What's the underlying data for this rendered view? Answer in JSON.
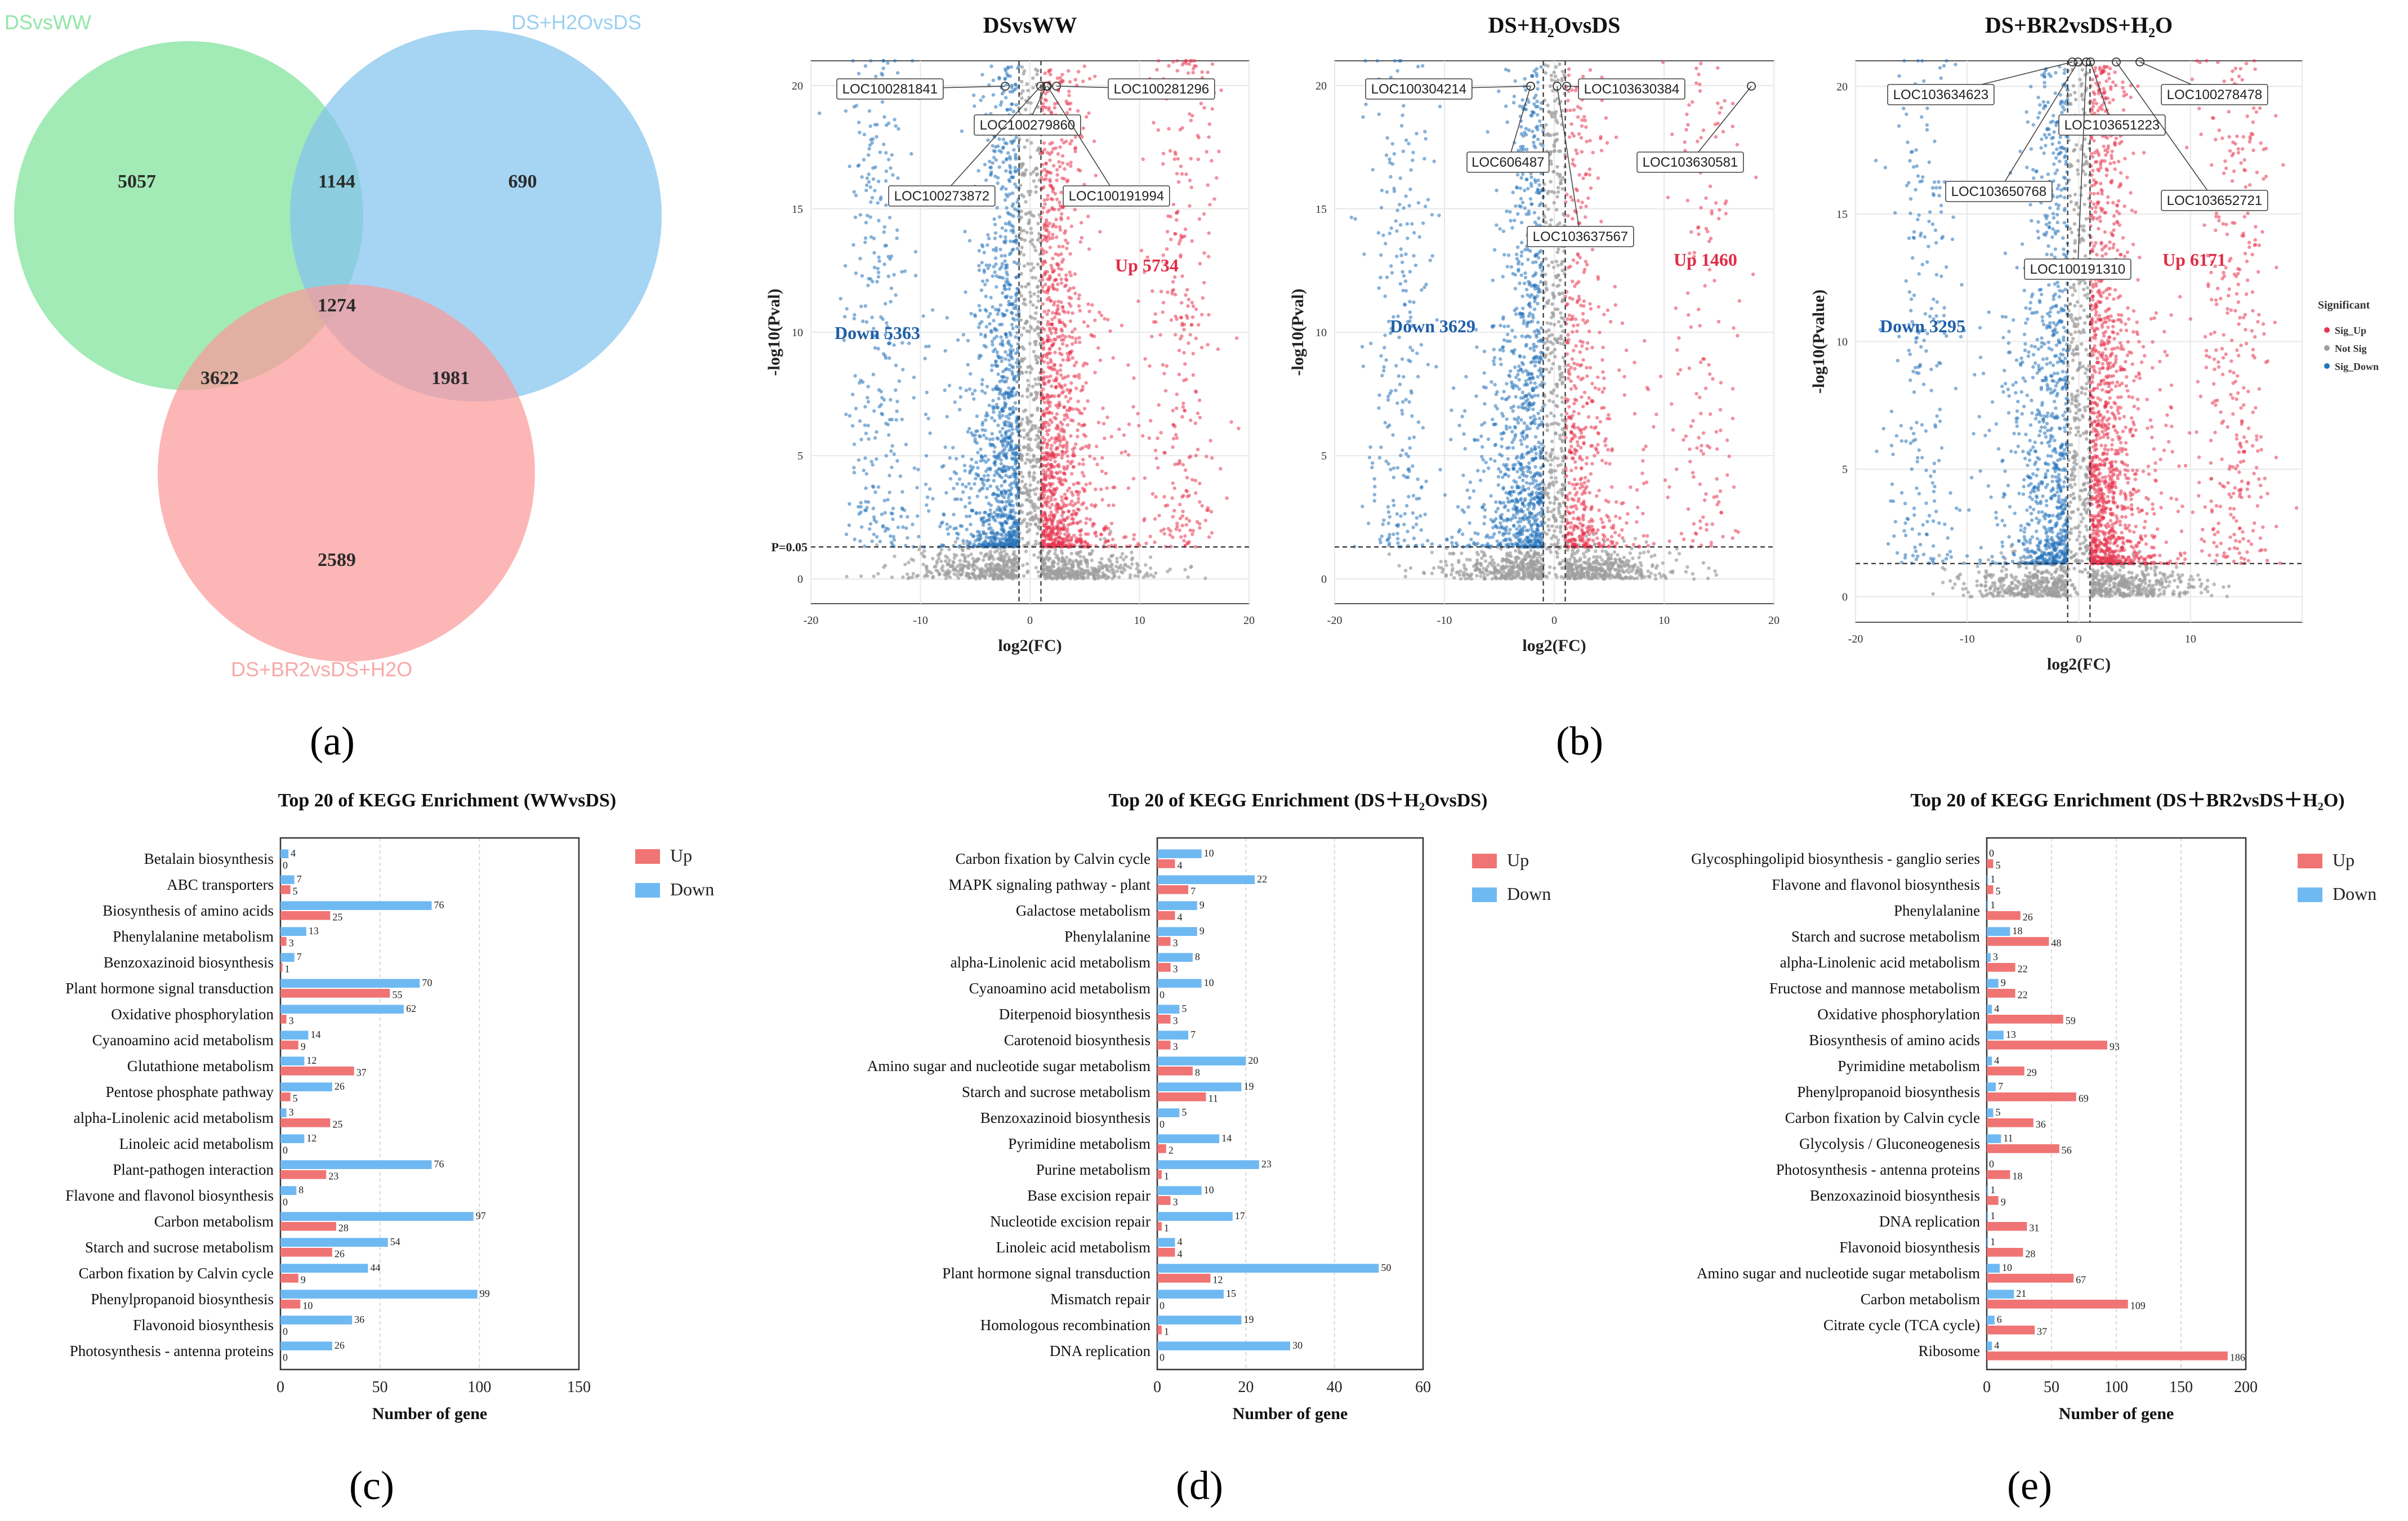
{
  "colors": {
    "venn_green": "#7ee29a",
    "venn_blue": "#84c4ef",
    "venn_red": "#fb9a9a",
    "venn_label_green": "#92e6a8",
    "venn_label_blue": "#9cd0f2",
    "venn_label_red": "#f8a9a9",
    "volcano_up": "#e8344e",
    "volcano_down": "#2573b9",
    "volcano_ns": "#9e9e9e",
    "volcano_up_text": "#e02d48",
    "volcano_down_text": "#1f5fa8",
    "bar_up": "#f07474",
    "bar_down": "#6fb9f3"
  },
  "panel_labels": {
    "a": "(a)",
    "b": "(b)",
    "c": "(c)",
    "d": "(d)",
    "e": "(e)"
  },
  "chart_data": [
    {
      "id": "venn",
      "type": "venn",
      "sets": [
        "DSvsWW",
        "DS+H2OvsDS",
        "DS+BR2vsDS+H2O"
      ],
      "regions": {
        "only_DSvsWW": 5057,
        "only_DS+H2OvsDS": 690,
        "only_DS+BR2vsDS+H2O": 2589,
        "DSvsWW_and_DS+H2OvsDS": 1144,
        "DSvsWW_and_DS+BR2vsDS+H2O": 3622,
        "DS+H2OvsDS_and_DS+BR2vsDS+H2O": 1981,
        "all_three": 1274
      },
      "region_labels": {
        "g": "5057",
        "b": "690",
        "r": "2589",
        "gb": "1144",
        "gr": "3622",
        "br": "1981",
        "gbr": "1274"
      }
    },
    {
      "id": "volcano1",
      "type": "scatter",
      "title": "DSvsWW",
      "xlabel": "log2(FC)",
      "ylabel": "-log10(Pval)",
      "xlim": [
        -20,
        20
      ],
      "ylim": [
        -1,
        21
      ],
      "xticks": [
        "-20",
        "-10",
        "0",
        "10",
        "20"
      ],
      "yticks": [
        "0",
        "5",
        "10",
        "15",
        "20"
      ],
      "threshold_label": "P=0.05",
      "counts": {
        "down": "Down 5363",
        "up": "Up 5734"
      },
      "annotated_genes": [
        "LOC100281841",
        "LOC100281296",
        "LOC100279860",
        "LOC100273872",
        "LOC100191994"
      ]
    },
    {
      "id": "volcano2",
      "type": "scatter",
      "title": "DS+H₂OvsDS",
      "xlabel": "log2(FC)",
      "ylabel": "-log10(Pval)",
      "xlim": [
        -20,
        20
      ],
      "ylim": [
        -1,
        21
      ],
      "xticks": [
        "-20",
        "-10",
        "0",
        "10",
        "20"
      ],
      "yticks": [
        "0",
        "5",
        "10",
        "15",
        "20"
      ],
      "counts": {
        "down": "Down 3629",
        "up": "Up 1460"
      },
      "annotated_genes": [
        "LOC100304214",
        "LOC103630384",
        "LOC606487",
        "LOC103630581",
        "LOC103637567"
      ]
    },
    {
      "id": "volcano3",
      "type": "scatter",
      "title": "DS+BR2vsDS+H₂O",
      "xlabel": "log2(FC)",
      "ylabel": "-log10(Pvalue)",
      "xlim": [
        -20,
        20
      ],
      "ylim": [
        -1,
        21
      ],
      "xticks": [
        "-20",
        "-10",
        "0",
        "10"
      ],
      "yticks": [
        "0",
        "5",
        "10",
        "15",
        "20"
      ],
      "counts": {
        "down": "Down 3295",
        "up": "Up 6171"
      },
      "annotated_genes": [
        "LOC103634623",
        "LOC100278478",
        "LOC103651223",
        "LOC103650768",
        "LOC103652721",
        "LOC100191310"
      ],
      "legend": {
        "title": "Significant",
        "items": [
          "Sig_Up",
          "Not Sig",
          "Sig_Down"
        ]
      }
    },
    {
      "id": "kegg1",
      "type": "bar",
      "orientation": "horizontal",
      "title": "Top 20 of KEGG Enrichment (WWvsDS)",
      "xlabel": "Number of gene",
      "xlim": [
        0,
        150
      ],
      "xticks": [
        "0",
        "50",
        "100",
        "150"
      ],
      "legend": [
        "Up",
        "Down"
      ],
      "categories": [
        "Betalain biosynthesis",
        "ABC transporters",
        "Biosynthesis of amino acids",
        "Phenylalanine metabolism",
        "Benzoxazinoid biosynthesis",
        "Plant hormone signal transduction",
        "Oxidative phosphorylation",
        "Cyanoamino acid metabolism",
        "Glutathione metabolism",
        "Pentose phosphate pathway",
        "alpha-Linolenic acid metabolism",
        "Linoleic acid metabolism",
        "Plant-pathogen interaction",
        "Flavone and flavonol biosynthesis",
        "Carbon metabolism",
        "Starch and sucrose metabolism",
        "Carbon fixation by Calvin cycle",
        "Phenylpropanoid biosynthesis",
        "Flavonoid biosynthesis",
        "Photosynthesis - antenna proteins"
      ],
      "series": [
        {
          "name": "Down",
          "values": [
            4,
            7,
            76,
            13,
            7,
            70,
            62,
            14,
            12,
            26,
            3,
            12,
            76,
            8,
            97,
            54,
            44,
            99,
            36,
            26
          ]
        },
        {
          "name": "Up",
          "values": [
            0,
            5,
            25,
            3,
            1,
            55,
            3,
            9,
            37,
            5,
            25,
            0,
            23,
            0,
            28,
            26,
            9,
            10,
            0,
            0
          ]
        }
      ]
    },
    {
      "id": "kegg2",
      "type": "bar",
      "orientation": "horizontal",
      "title": "Top 20 of KEGG Enrichment (DS＋H₂OvsDS)",
      "xlabel": "Number of gene",
      "xlim": [
        0,
        60
      ],
      "xticks": [
        "0",
        "20",
        "40",
        "60"
      ],
      "legend": [
        "Up",
        "Down"
      ],
      "categories": [
        "Carbon fixation by Calvin cycle",
        "MAPK signaling pathway - plant",
        "Galactose metabolism",
        "Phenylalanine",
        "alpha-Linolenic acid metabolism",
        "Cyanoamino acid metabolism",
        "Diterpenoid biosynthesis",
        "Carotenoid biosynthesis",
        "Amino sugar and nucleotide sugar metabolism",
        "Starch and sucrose metabolism",
        "Benzoxazinoid biosynthesis",
        "Pyrimidine metabolism",
        "Purine metabolism",
        "Base excision repair",
        "Nucleotide excision repair",
        "Linoleic acid metabolism",
        "Plant hormone signal transduction",
        "Mismatch repair",
        "Homologous recombination",
        "DNA replication"
      ],
      "series": [
        {
          "name": "Down",
          "values": [
            10,
            22,
            9,
            9,
            8,
            10,
            5,
            7,
            20,
            19,
            5,
            14,
            23,
            10,
            17,
            4,
            50,
            15,
            19,
            30
          ]
        },
        {
          "name": "Up",
          "values": [
            4,
            7,
            4,
            3,
            3,
            0,
            3,
            3,
            8,
            11,
            0,
            2,
            1,
            3,
            1,
            4,
            12,
            0,
            1,
            0
          ]
        }
      ]
    },
    {
      "id": "kegg3",
      "type": "bar",
      "orientation": "horizontal",
      "title": "Top 20 of KEGG Enrichment (DS＋BR2vsDS＋H₂O)",
      "xlabel": "Number of gene",
      "xlim": [
        0,
        200
      ],
      "xticks": [
        "0",
        "50",
        "100",
        "150",
        "200"
      ],
      "legend": [
        "Up",
        "Down"
      ],
      "categories": [
        "Glycosphingolipid biosynthesis - ganglio series",
        "Flavone and flavonol biosynthesis",
        "Phenylalanine",
        "Starch and sucrose metabolism",
        "alpha-Linolenic acid metabolism",
        "Fructose and mannose metabolism",
        "Oxidative phosphorylation",
        "Biosynthesis of amino acids",
        "Pyrimidine metabolism",
        "Phenylpropanoid biosynthesis",
        "Carbon fixation by Calvin cycle",
        "Glycolysis / Gluconeogenesis",
        "Photosynthesis - antenna proteins",
        "Benzoxazinoid biosynthesis",
        "DNA replication",
        "Flavonoid biosynthesis",
        "Amino sugar and nucleotide sugar metabolism",
        "Carbon metabolism",
        "Citrate cycle (TCA cycle)",
        "Ribosome"
      ],
      "series": [
        {
          "name": "Down",
          "values": [
            0,
            1,
            1,
            18,
            3,
            9,
            4,
            13,
            4,
            7,
            5,
            11,
            0,
            1,
            1,
            1,
            10,
            21,
            6,
            4
          ]
        },
        {
          "name": "Up",
          "values": [
            5,
            5,
            26,
            48,
            22,
            22,
            59,
            93,
            29,
            69,
            36,
            56,
            18,
            9,
            31,
            28,
            67,
            109,
            37,
            186
          ]
        }
      ]
    }
  ]
}
